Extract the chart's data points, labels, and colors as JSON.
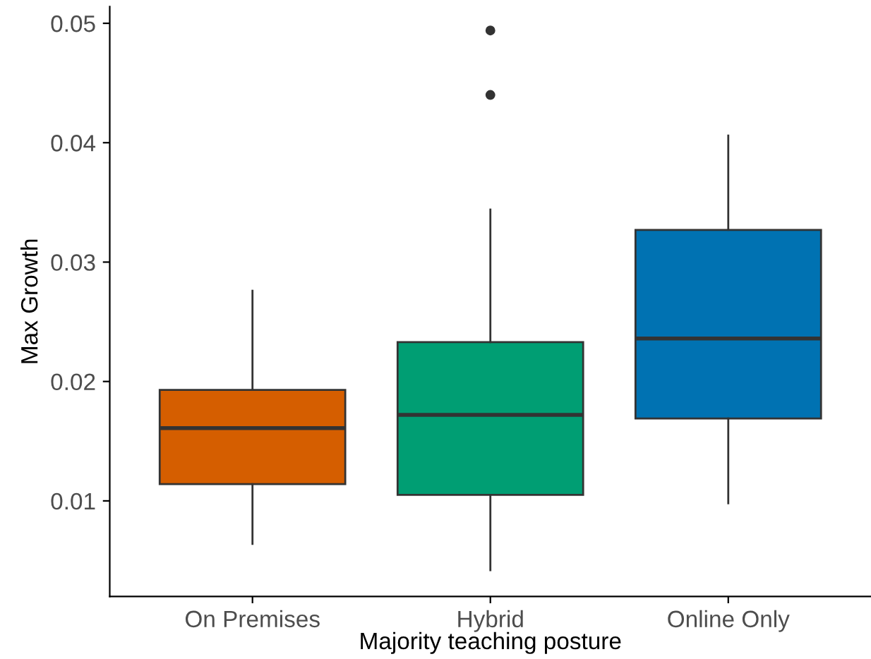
{
  "chart_data": {
    "type": "box",
    "xlabel": "Majority teaching posture",
    "ylabel": "Max Growth",
    "categories": [
      "On Premises",
      "Hybrid",
      "Online Only"
    ],
    "colors": [
      "#d55e00",
      "#009e73",
      "#0072b2"
    ],
    "boxes": [
      {
        "low": 0.0064,
        "q1": 0.0114,
        "median": 0.0161,
        "q3": 0.0193,
        "high": 0.0276
      },
      {
        "low": 0.0042,
        "q1": 0.0105,
        "median": 0.0172,
        "q3": 0.0233,
        "high": 0.0344,
        "outliers": [
          0.044,
          0.0494
        ]
      },
      {
        "low": 0.0098,
        "q1": 0.0169,
        "median": 0.0236,
        "q3": 0.0327,
        "high": 0.0406
      }
    ],
    "ylim": [
      0.002,
      0.0514
    ],
    "yticks": [
      {
        "value": 0.01,
        "label": "0.01"
      },
      {
        "value": 0.02,
        "label": "0.02"
      },
      {
        "value": 0.03,
        "label": "0.03"
      },
      {
        "value": 0.04,
        "label": "0.04"
      },
      {
        "value": 0.05,
        "label": "0.05"
      }
    ],
    "grid": false,
    "legend": false
  }
}
